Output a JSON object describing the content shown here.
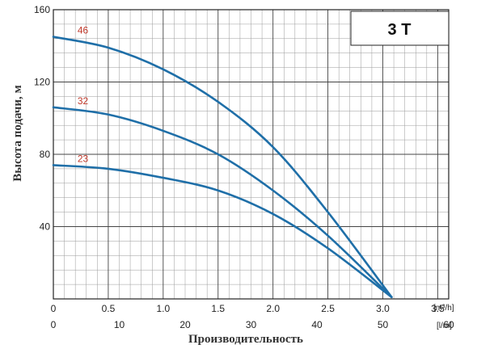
{
  "chart_data": {
    "type": "line",
    "title": "3 T",
    "ylabel": "Высота подачи, м",
    "xlabel": "Производительность",
    "x_units": "[m³/h]",
    "x2_units": "[l/m]",
    "xlim": [
      0,
      3.6
    ],
    "ylim": [
      0,
      160
    ],
    "x_ticks": [
      "0",
      "0.5",
      "1.0",
      "1.5",
      "2.0",
      "2.5",
      "3.0",
      "3.5"
    ],
    "x_tick_values": [
      0,
      0.5,
      1.0,
      1.5,
      2.0,
      2.5,
      3.0,
      3.5
    ],
    "x2_ticks": [
      "0",
      "10",
      "20",
      "30",
      "40",
      "50",
      "60"
    ],
    "x2_tick_values": [
      0,
      10,
      20,
      30,
      40,
      50,
      60
    ],
    "y_ticks": [
      "40",
      "80",
      "120",
      "160"
    ],
    "y_tick_values": [
      40,
      80,
      120,
      160
    ],
    "grid": true,
    "line_color": "#1f6fa8",
    "label_color": "#c0392b",
    "series": [
      {
        "name": "46",
        "x": [
          0,
          0.5,
          1.0,
          1.5,
          2.0,
          2.5,
          3.08
        ],
        "y": [
          145,
          139,
          127,
          109,
          84,
          48,
          1
        ]
      },
      {
        "name": "32",
        "x": [
          0,
          0.5,
          1.0,
          1.5,
          2.0,
          2.5,
          3.08
        ],
        "y": [
          106,
          102,
          93,
          80,
          60,
          35,
          1
        ]
      },
      {
        "name": "23",
        "x": [
          0,
          0.5,
          1.0,
          1.5,
          2.0,
          2.5,
          3.08
        ],
        "y": [
          74,
          72,
          67,
          60,
          47,
          28,
          1
        ]
      }
    ]
  }
}
